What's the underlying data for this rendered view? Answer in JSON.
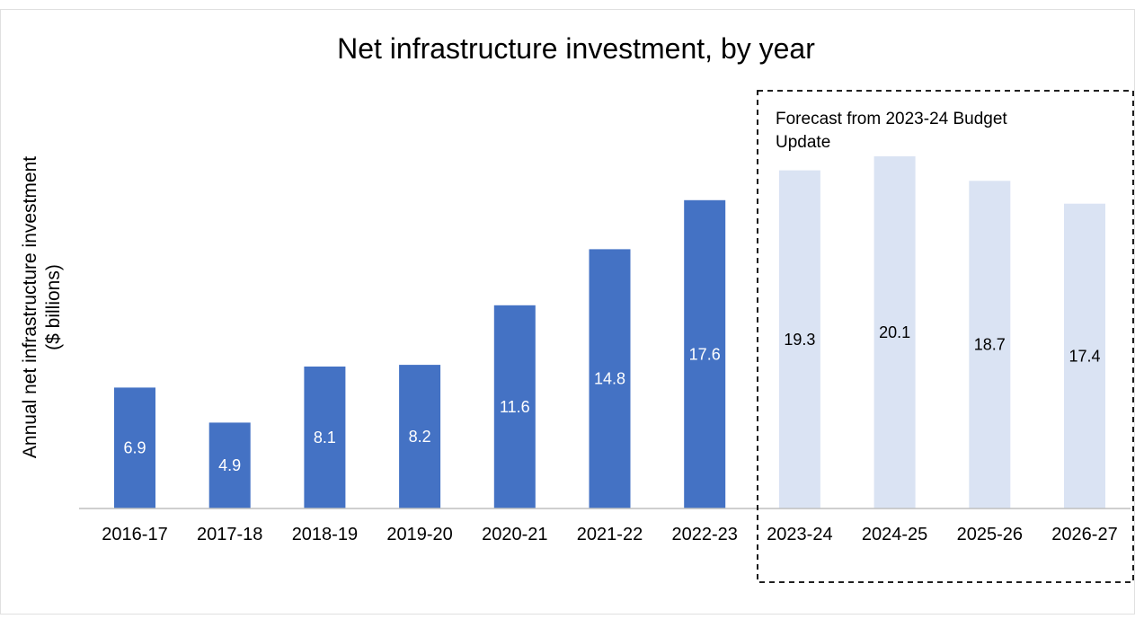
{
  "chart_data": {
    "type": "bar",
    "title": "Net infrastructure investment, by year",
    "ylabel_lines": [
      "Annual net infrastructure investment",
      "($ billions)"
    ],
    "xlabel": "",
    "categories": [
      "2016-17",
      "2017-18",
      "2018-19",
      "2019-20",
      "2020-21",
      "2021-22",
      "2022-23",
      "2023-24",
      "2024-25",
      "2025-26",
      "2026-27"
    ],
    "values": [
      6.9,
      4.9,
      8.1,
      8.2,
      11.6,
      14.8,
      17.6,
      19.3,
      20.1,
      18.7,
      17.4
    ],
    "data_labels": [
      "6.9",
      "4.9",
      "8.1",
      "8.2",
      "11.6",
      "14.8",
      "17.6",
      "19.3",
      "20.1",
      "18.7",
      "17.4"
    ],
    "forecast_start_index": 7,
    "forecast_annotation": {
      "lines": [
        "Forecast from 2023-24 Budget",
        "Update"
      ]
    },
    "colors": {
      "actual": "#4472c4",
      "forecast": "#dae3f3",
      "actual_label": "#ffffff",
      "forecast_label": "#000000",
      "axis": "#bfbfbf",
      "box": "#000000"
    },
    "ylim": [
      0,
      20.1
    ],
    "grid": false,
    "legend": "none"
  }
}
